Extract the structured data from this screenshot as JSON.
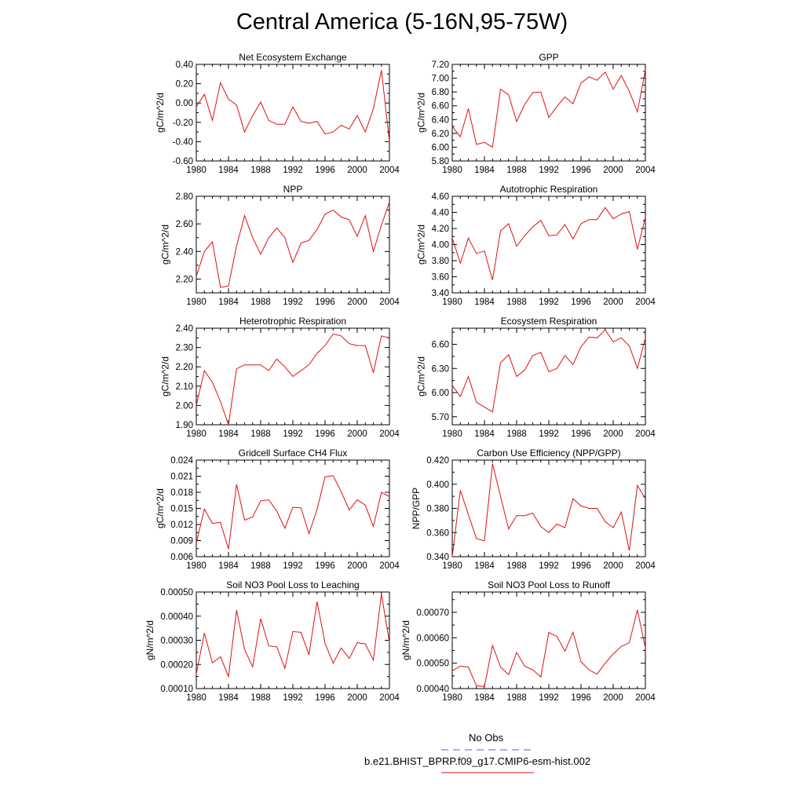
{
  "title": "Central America (5-16N,95-75W)",
  "legend": {
    "entries": [
      {
        "label": "No Obs",
        "color": "#5a5adc",
        "style": "dashed"
      },
      {
        "label": "b.e21.BHIST_BPRP.f09_g17.CMIP6-esm-hist.002",
        "color": "#dd1111",
        "style": "solid"
      }
    ]
  },
  "chart_data": [
    {
      "type": "line",
      "title": "Net Ecosystem Exchange",
      "xlabel": "",
      "ylabel": "gC/m^2/d",
      "x": [
        1980,
        1981,
        1982,
        1983,
        1984,
        1985,
        1986,
        1987,
        1988,
        1989,
        1990,
        1991,
        1992,
        1993,
        1994,
        1995,
        1996,
        1997,
        1998,
        1999,
        2000,
        2001,
        2002,
        2003,
        2004
      ],
      "xticks": [
        1980,
        1984,
        1988,
        1992,
        1996,
        2000,
        2004
      ],
      "xtick_labels": [
        "1980",
        "1984",
        "1988",
        "1992",
        "1996",
        "2000",
        "2004"
      ],
      "ylim": [
        -0.6,
        0.4
      ],
      "yticks": [
        -0.6,
        -0.4,
        -0.2,
        0.0,
        0.2,
        0.4
      ],
      "ytick_labels": [
        "-0.60",
        "-0.40",
        "-0.20",
        "0.00",
        "0.20",
        "0.40"
      ],
      "series": [
        {
          "name": "b.e21.BHIST_BPRP.f09_g17.CMIP6-esm-hist.002",
          "color": "#dd1111",
          "values": [
            -0.04,
            0.09,
            -0.18,
            0.21,
            0.04,
            -0.02,
            -0.3,
            -0.13,
            0.01,
            -0.18,
            -0.22,
            -0.22,
            -0.04,
            -0.19,
            -0.21,
            -0.19,
            -0.32,
            -0.3,
            -0.23,
            -0.27,
            -0.13,
            -0.3,
            -0.06,
            0.34,
            -0.4
          ]
        }
      ]
    },
    {
      "type": "line",
      "title": "GPP",
      "xlabel": "",
      "ylabel": "gC/m^2/d",
      "x": [
        1980,
        1981,
        1982,
        1983,
        1984,
        1985,
        1986,
        1987,
        1988,
        1989,
        1990,
        1991,
        1992,
        1993,
        1994,
        1995,
        1996,
        1997,
        1998,
        1999,
        2000,
        2001,
        2002,
        2003,
        2004
      ],
      "xticks": [
        1980,
        1984,
        1988,
        1992,
        1996,
        2000,
        2004
      ],
      "xtick_labels": [
        "1980",
        "1984",
        "1988",
        "1992",
        "1996",
        "2000",
        "2004"
      ],
      "ylim": [
        5.8,
        7.2
      ],
      "yticks": [
        5.8,
        6.0,
        6.2,
        6.4,
        6.6,
        6.8,
        7.0,
        7.2
      ],
      "ytick_labels": [
        "5.80",
        "6.00",
        "6.20",
        "6.40",
        "6.60",
        "6.80",
        "7.00",
        "7.20"
      ],
      "series": [
        {
          "name": "b.e21.BHIST_BPRP.f09_g17.CMIP6-esm-hist.002",
          "color": "#dd1111",
          "values": [
            6.3,
            6.15,
            6.56,
            6.04,
            6.07,
            6.0,
            6.84,
            6.76,
            6.37,
            6.62,
            6.79,
            6.8,
            6.43,
            6.59,
            6.73,
            6.63,
            6.93,
            7.02,
            6.97,
            7.09,
            6.84,
            7.04,
            6.81,
            6.51,
            7.12
          ]
        }
      ]
    },
    {
      "type": "line",
      "title": "NPP",
      "xlabel": "",
      "ylabel": "gC/m^2/d",
      "x": [
        1980,
        1981,
        1982,
        1983,
        1984,
        1985,
        1986,
        1987,
        1988,
        1989,
        1990,
        1991,
        1992,
        1993,
        1994,
        1995,
        1996,
        1997,
        1998,
        1999,
        2000,
        2001,
        2002,
        2003,
        2004
      ],
      "xticks": [
        1980,
        1984,
        1988,
        1992,
        1996,
        2000,
        2004
      ],
      "xtick_labels": [
        "1980",
        "1984",
        "1988",
        "1992",
        "1996",
        "2000",
        "2004"
      ],
      "ylim": [
        2.1,
        2.8
      ],
      "yticks": [
        2.2,
        2.4,
        2.6,
        2.8
      ],
      "ytick_labels": [
        "2.20",
        "2.40",
        "2.60",
        "2.80"
      ],
      "series": [
        {
          "name": "b.e21.BHIST_BPRP.f09_g17.CMIP6-esm-hist.002",
          "color": "#dd1111",
          "values": [
            2.22,
            2.4,
            2.47,
            2.14,
            2.15,
            2.44,
            2.66,
            2.5,
            2.38,
            2.5,
            2.57,
            2.5,
            2.32,
            2.46,
            2.48,
            2.56,
            2.67,
            2.7,
            2.65,
            2.63,
            2.51,
            2.66,
            2.4,
            2.59,
            2.76
          ]
        }
      ]
    },
    {
      "type": "line",
      "title": "Autotrophic Respiration",
      "xlabel": "",
      "ylabel": "gC/m^2/d",
      "x": [
        1980,
        1981,
        1982,
        1983,
        1984,
        1985,
        1986,
        1987,
        1988,
        1989,
        1990,
        1991,
        1992,
        1993,
        1994,
        1995,
        1996,
        1997,
        1998,
        1999,
        2000,
        2001,
        2002,
        2003,
        2004
      ],
      "xticks": [
        1980,
        1984,
        1988,
        1992,
        1996,
        2000,
        2004
      ],
      "xtick_labels": [
        "1980",
        "1984",
        "1988",
        "1992",
        "1996",
        "2000",
        "2004"
      ],
      "ylim": [
        3.4,
        4.6
      ],
      "yticks": [
        3.4,
        3.6,
        3.8,
        4.0,
        4.2,
        4.4,
        4.6
      ],
      "ytick_labels": [
        "3.40",
        "3.60",
        "3.80",
        "4.00",
        "4.20",
        "4.40",
        "4.60"
      ],
      "series": [
        {
          "name": "b.e21.BHIST_BPRP.f09_g17.CMIP6-esm-hist.002",
          "color": "#dd1111",
          "values": [
            4.08,
            3.77,
            4.08,
            3.89,
            3.92,
            3.56,
            4.17,
            4.26,
            3.98,
            4.11,
            4.22,
            4.3,
            4.11,
            4.12,
            4.25,
            4.07,
            4.26,
            4.31,
            4.31,
            4.46,
            4.32,
            4.38,
            4.41,
            3.94,
            4.34
          ]
        }
      ]
    },
    {
      "type": "line",
      "title": "Heterotrophic Respiration",
      "xlabel": "",
      "ylabel": "gC/m^2/d",
      "x": [
        1980,
        1981,
        1982,
        1983,
        1984,
        1985,
        1986,
        1987,
        1988,
        1989,
        1990,
        1991,
        1992,
        1993,
        1994,
        1995,
        1996,
        1997,
        1998,
        1999,
        2000,
        2001,
        2002,
        2003,
        2004
      ],
      "xticks": [
        1980,
        1984,
        1988,
        1992,
        1996,
        2000,
        2004
      ],
      "xtick_labels": [
        "1980",
        "1984",
        "1988",
        "1992",
        "1996",
        "2000",
        "2004"
      ],
      "ylim": [
        1.9,
        2.4
      ],
      "yticks": [
        1.9,
        2.0,
        2.1,
        2.2,
        2.3,
        2.4
      ],
      "ytick_labels": [
        "1.90",
        "2.00",
        "2.10",
        "2.20",
        "2.30",
        "2.40"
      ],
      "series": [
        {
          "name": "b.e21.BHIST_BPRP.f09_g17.CMIP6-esm-hist.002",
          "color": "#dd1111",
          "values": [
            2.0,
            2.18,
            2.12,
            2.02,
            1.9,
            2.19,
            2.21,
            2.21,
            2.21,
            2.18,
            2.24,
            2.2,
            2.15,
            2.18,
            2.21,
            2.27,
            2.31,
            2.37,
            2.36,
            2.32,
            2.31,
            2.31,
            2.17,
            2.36,
            2.35
          ]
        }
      ]
    },
    {
      "type": "line",
      "title": "Ecosystem Respiration",
      "xlabel": "",
      "ylabel": "gC/m^2/d",
      "x": [
        1980,
        1981,
        1982,
        1983,
        1984,
        1985,
        1986,
        1987,
        1988,
        1989,
        1990,
        1991,
        1992,
        1993,
        1994,
        1995,
        1996,
        1997,
        1998,
        1999,
        2000,
        2001,
        2002,
        2003,
        2004
      ],
      "xticks": [
        1980,
        1984,
        1988,
        1992,
        1996,
        2000,
        2004
      ],
      "xtick_labels": [
        "1980",
        "1984",
        "1988",
        "1992",
        "1996",
        "2000",
        "2004"
      ],
      "ylim": [
        5.6,
        6.8
      ],
      "yticks": [
        5.7,
        6.0,
        6.3,
        6.6
      ],
      "ytick_labels": [
        "5.70",
        "6.00",
        "6.30",
        "6.60"
      ],
      "series": [
        {
          "name": "b.e21.BHIST_BPRP.f09_g17.CMIP6-esm-hist.002",
          "color": "#dd1111",
          "values": [
            6.09,
            5.95,
            6.2,
            5.88,
            5.82,
            5.76,
            6.37,
            6.47,
            6.2,
            6.28,
            6.46,
            6.5,
            6.26,
            6.3,
            6.46,
            6.35,
            6.57,
            6.69,
            6.68,
            6.78,
            6.63,
            6.68,
            6.58,
            6.3,
            6.68
          ]
        }
      ]
    },
    {
      "type": "line",
      "title": "Gridcell Surface CH4 Flux",
      "xlabel": "",
      "ylabel": "gC/m^2/d",
      "x": [
        1980,
        1981,
        1982,
        1983,
        1984,
        1985,
        1986,
        1987,
        1988,
        1989,
        1990,
        1991,
        1992,
        1993,
        1994,
        1995,
        1996,
        1997,
        1998,
        1999,
        2000,
        2001,
        2002,
        2003,
        2004
      ],
      "xticks": [
        1980,
        1984,
        1988,
        1992,
        1996,
        2000,
        2004
      ],
      "xtick_labels": [
        "1980",
        "1984",
        "1988",
        "1992",
        "1996",
        "2000",
        "2004"
      ],
      "ylim": [
        0.006,
        0.024
      ],
      "yticks": [
        0.006,
        0.009,
        0.012,
        0.015,
        0.018,
        0.021,
        0.024
      ],
      "ytick_labels": [
        "0.006",
        "0.009",
        "0.012",
        "0.015",
        "0.018",
        "0.021",
        "0.024"
      ],
      "series": [
        {
          "name": "b.e21.BHIST_BPRP.f09_g17.CMIP6-esm-hist.002",
          "color": "#dd1111",
          "values": [
            0.0085,
            0.0149,
            0.0122,
            0.0124,
            0.0074,
            0.0195,
            0.0128,
            0.0134,
            0.0164,
            0.0166,
            0.0145,
            0.0113,
            0.0152,
            0.0151,
            0.0103,
            0.0148,
            0.0209,
            0.0211,
            0.0181,
            0.0147,
            0.0166,
            0.0156,
            0.0116,
            0.018,
            0.0172
          ]
        }
      ]
    },
    {
      "type": "line",
      "title": "Carbon Use Efficiency (NPP/GPP)",
      "xlabel": "",
      "ylabel": "NPP/GPP",
      "x": [
        1980,
        1981,
        1982,
        1983,
        1984,
        1985,
        1986,
        1987,
        1988,
        1989,
        1990,
        1991,
        1992,
        1993,
        1994,
        1995,
        1996,
        1997,
        1998,
        1999,
        2000,
        2001,
        2002,
        2003,
        2004
      ],
      "xticks": [
        1980,
        1984,
        1988,
        1992,
        1996,
        2000,
        2004
      ],
      "xtick_labels": [
        "1980",
        "1984",
        "1988",
        "1992",
        "1996",
        "2000",
        "2004"
      ],
      "ylim": [
        0.34,
        0.42
      ],
      "yticks": [
        0.34,
        0.36,
        0.38,
        0.4,
        0.42
      ],
      "ytick_labels": [
        "0.340",
        "0.360",
        "0.380",
        "0.400",
        "0.420"
      ],
      "series": [
        {
          "name": "b.e21.BHIST_BPRP.f09_g17.CMIP6-esm-hist.002",
          "color": "#dd1111",
          "values": [
            0.34,
            0.395,
            0.375,
            0.355,
            0.353,
            0.417,
            0.39,
            0.363,
            0.374,
            0.374,
            0.376,
            0.365,
            0.36,
            0.367,
            0.364,
            0.388,
            0.382,
            0.38,
            0.38,
            0.369,
            0.364,
            0.377,
            0.345,
            0.399,
            0.388
          ]
        }
      ]
    },
    {
      "type": "line",
      "title": "Soil NO3 Pool Loss to Leaching",
      "xlabel": "",
      "ylabel": "gN/m^2/d",
      "x": [
        1980,
        1981,
        1982,
        1983,
        1984,
        1985,
        1986,
        1987,
        1988,
        1989,
        1990,
        1991,
        1992,
        1993,
        1994,
        1995,
        1996,
        1997,
        1998,
        1999,
        2000,
        2001,
        2002,
        2003,
        2004
      ],
      "xticks": [
        1980,
        1984,
        1988,
        1992,
        1996,
        2000,
        2004
      ],
      "xtick_labels": [
        "1980",
        "1984",
        "1988",
        "1992",
        "1996",
        "2000",
        "2004"
      ],
      "ylim": [
        0.0001,
        0.0005
      ],
      "yticks": [
        0.0001,
        0.0002,
        0.0003,
        0.0004,
        0.0005
      ],
      "ytick_labels": [
        "0.00010",
        "0.00020",
        "0.00030",
        "0.00040",
        "0.00050"
      ],
      "series": [
        {
          "name": "b.e21.BHIST_BPRP.f09_g17.CMIP6-esm-hist.002",
          "color": "#dd1111",
          "values": [
            0.00016,
            0.00033,
            0.000207,
            0.000232,
            0.00015,
            0.000425,
            0.000262,
            0.00019,
            0.00039,
            0.000277,
            0.000273,
            0.000184,
            0.000336,
            0.000333,
            0.00024,
            0.00046,
            0.000287,
            0.000205,
            0.000268,
            0.000225,
            0.00029,
            0.000285,
            0.000218,
            0.000492,
            0.00029
          ]
        }
      ]
    },
    {
      "type": "line",
      "title": "Soil NO3 Pool Loss to Runoff",
      "xlabel": "",
      "ylabel": "gN/m^2/d",
      "x": [
        1980,
        1981,
        1982,
        1983,
        1984,
        1985,
        1986,
        1987,
        1988,
        1989,
        1990,
        1991,
        1992,
        1993,
        1994,
        1995,
        1996,
        1997,
        1998,
        1999,
        2000,
        2001,
        2002,
        2003,
        2004
      ],
      "xticks": [
        1980,
        1984,
        1988,
        1992,
        1996,
        2000,
        2004
      ],
      "xtick_labels": [
        "1980",
        "1984",
        "1988",
        "1992",
        "1996",
        "2000",
        "2004"
      ],
      "ylim": [
        0.0004,
        0.00078
      ],
      "yticks": [
        0.0004,
        0.0005,
        0.0006,
        0.0007
      ],
      "ytick_labels": [
        "0.00040",
        "0.00050",
        "0.00060",
        "0.00070"
      ],
      "series": [
        {
          "name": "b.e21.BHIST_BPRP.f09_g17.CMIP6-esm-hist.002",
          "color": "#dd1111",
          "values": [
            0.00047,
            0.000488,
            0.000485,
            0.000411,
            0.000408,
            0.00057,
            0.000485,
            0.000455,
            0.000542,
            0.000488,
            0.000474,
            0.000446,
            0.000621,
            0.000605,
            0.000547,
            0.000622,
            0.000506,
            0.000473,
            0.000457,
            0.0005,
            0.000536,
            0.000566,
            0.00058,
            0.00071,
            0.00056
          ]
        }
      ]
    }
  ]
}
